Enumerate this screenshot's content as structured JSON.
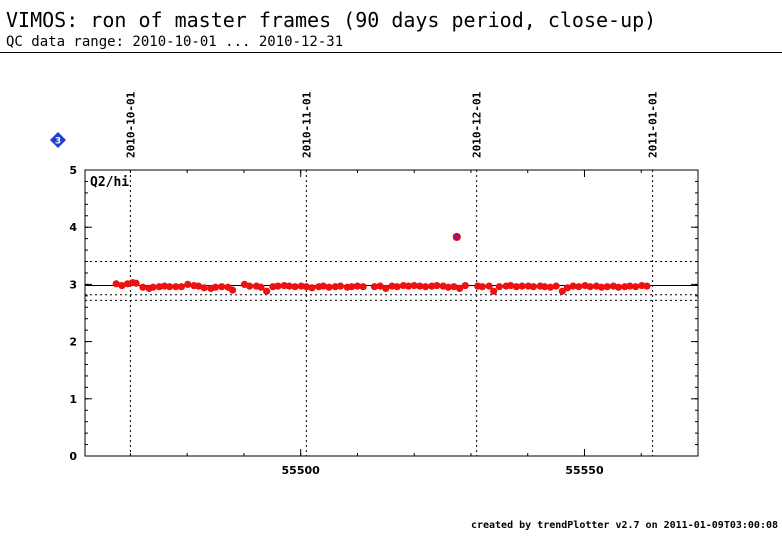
{
  "header": {
    "title": "VIMOS: ron of master frames (90 days period, close-up)",
    "subtitle": "QC data range: 2010-10-01 ... 2010-12-31"
  },
  "footer": {
    "text": "created by trendPlotter v2.7 on 2011-01-09T03:00:08"
  },
  "badge": {
    "label": "3",
    "color": "#1a3fd1",
    "icon": "diamond-icon"
  },
  "colors": {
    "points": "#ee1111",
    "outlier": "#6a1b9a",
    "outlier_edge": "#ee1111",
    "reference": "#000000"
  },
  "chart_data": {
    "type": "scatter",
    "panel_label": "Q2/hi",
    "xlim": [
      55462,
      55570
    ],
    "ylim": [
      0,
      5
    ],
    "x_ticks": [
      55500,
      55550
    ],
    "y_ticks": [
      0,
      1,
      2,
      3,
      4,
      5
    ],
    "date_markers": [
      {
        "label": "2010-10-01",
        "x": 55470
      },
      {
        "label": "2010-11-01",
        "x": 55501
      },
      {
        "label": "2010-12-01",
        "x": 55531
      },
      {
        "label": "2011-01-01",
        "x": 55562
      }
    ],
    "reference_line": 2.98,
    "thresholds": [
      2.72,
      3.4,
      2.82
    ],
    "series": [
      {
        "x": [
          55467.5,
          55468.5,
          55469.5,
          55470.4,
          55471.0,
          55472.2,
          55473.3,
          55474.0,
          55475.1,
          55476.0,
          55476.9,
          55478.0,
          55479.0,
          55480.1,
          55481.2,
          55482.0,
          55483.0,
          55484.2,
          55485.0,
          55486.1,
          55487.2,
          55488.0,
          55490.1,
          55491.0,
          55492.2,
          55493.0,
          55494.0,
          55495.1,
          55496.0,
          55497.1,
          55498.0,
          55499.0,
          55500.1,
          55501.0,
          55502.0,
          55503.2,
          55504.0,
          55505.0,
          55506.1,
          55507.0,
          55508.2,
          55509.0,
          55510.0,
          55511.0,
          55513.0,
          55514.0,
          55515.0,
          55516.1,
          55517.0,
          55518.1,
          55519.0,
          55520.0,
          55521.0,
          55522.0,
          55523.1,
          55524.0,
          55525.1,
          55526.0,
          55527.0,
          55528.0,
          55529.0,
          55531.2,
          55532.0,
          55533.2,
          55534.0,
          55535.0,
          55536.2,
          55537.0,
          55538.0,
          55539.0,
          55540.1,
          55541.0,
          55542.2,
          55543.0,
          55544.0,
          55545.0,
          55546.1,
          55547.0,
          55548.0,
          55549.0,
          55550.1,
          55551.0,
          55552.1,
          55553.0,
          55554.0,
          55555.1,
          55556.0,
          55557.1,
          55558.0,
          55559.0,
          55560.1,
          55561.0
        ],
        "y": [
          3.01,
          2.98,
          3.01,
          3.03,
          3.02,
          2.95,
          2.93,
          2.95,
          2.96,
          2.97,
          2.96,
          2.96,
          2.96,
          3.0,
          2.98,
          2.97,
          2.94,
          2.93,
          2.95,
          2.96,
          2.95,
          2.9,
          3.0,
          2.97,
          2.97,
          2.95,
          2.88,
          2.96,
          2.97,
          2.98,
          2.97,
          2.96,
          2.97,
          2.96,
          2.94,
          2.96,
          2.97,
          2.95,
          2.96,
          2.97,
          2.95,
          2.96,
          2.97,
          2.96,
          2.96,
          2.97,
          2.93,
          2.97,
          2.96,
          2.98,
          2.97,
          2.98,
          2.97,
          2.96,
          2.97,
          2.98,
          2.97,
          2.95,
          2.96,
          2.93,
          2.98,
          2.97,
          2.96,
          2.97,
          2.88,
          2.96,
          2.97,
          2.98,
          2.96,
          2.97,
          2.97,
          2.96,
          2.97,
          2.96,
          2.95,
          2.97,
          2.88,
          2.94,
          2.97,
          2.96,
          2.98,
          2.96,
          2.97,
          2.95,
          2.96,
          2.97,
          2.95,
          2.96,
          2.97,
          2.96,
          2.98,
          2.97
        ]
      }
    ],
    "outliers": [
      {
        "x": 55527.5,
        "y": 3.83
      }
    ]
  }
}
